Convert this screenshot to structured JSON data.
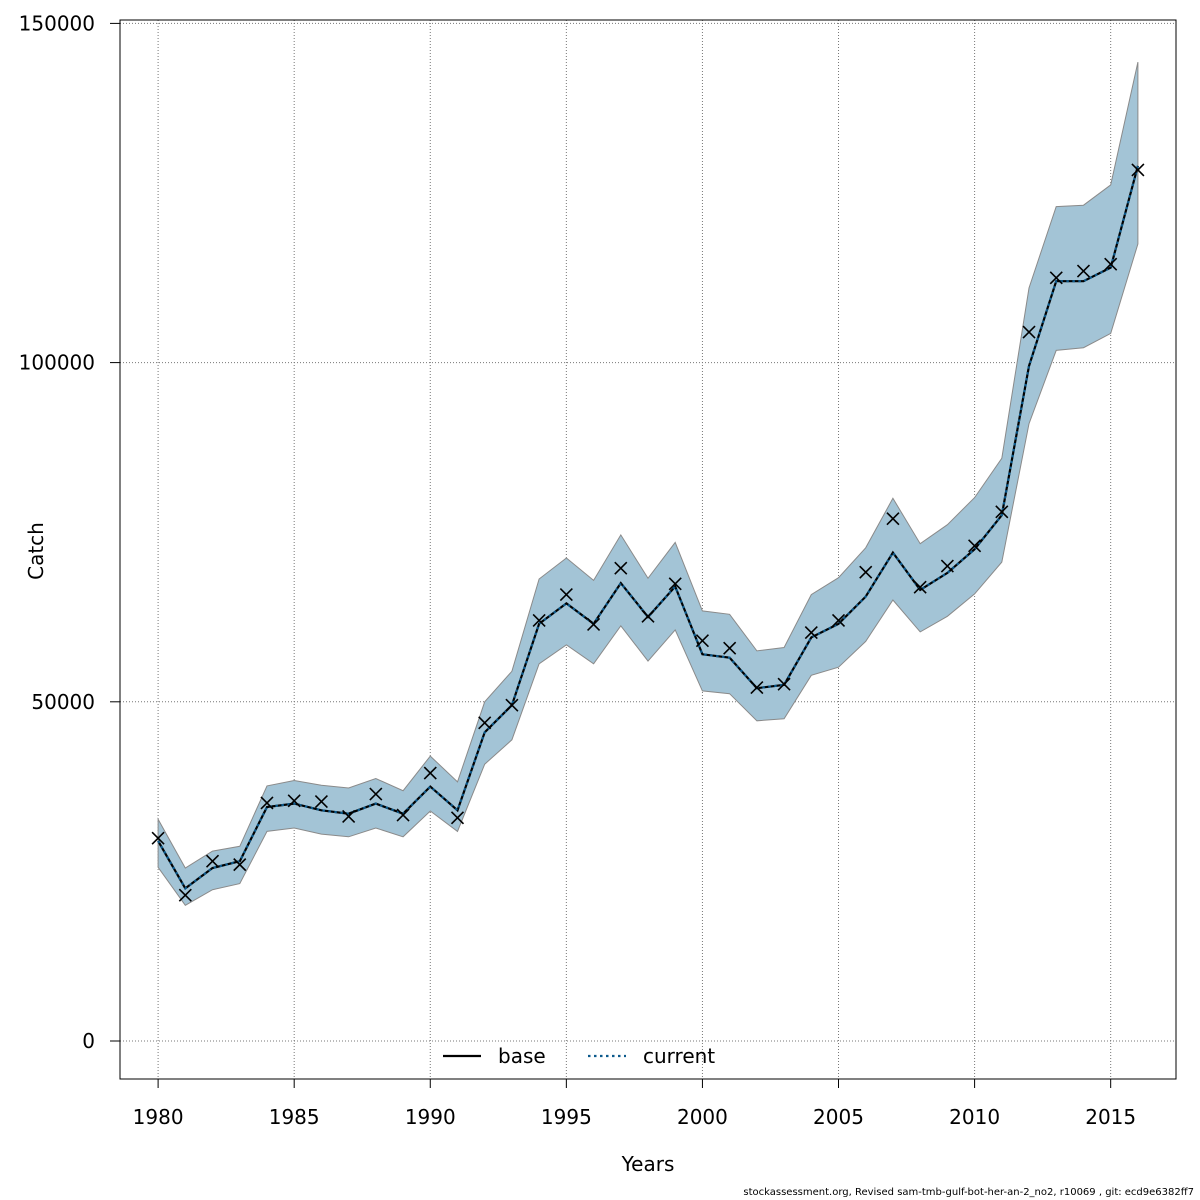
{
  "chart_data": {
    "type": "line",
    "xlabel": "Years",
    "ylabel": "Catch",
    "xlim": [
      1978.6,
      2017.4
    ],
    "ylim": [
      -5600,
      150500
    ],
    "x_ticks": [
      1980,
      1985,
      1990,
      1995,
      2000,
      2005,
      2010,
      2015
    ],
    "y_ticks": [
      0,
      50000,
      100000,
      150000
    ],
    "grid": true,
    "legend_position": "bottom-center",
    "x": [
      1980,
      1981,
      1982,
      1983,
      1984,
      1985,
      1986,
      1987,
      1988,
      1989,
      1990,
      1991,
      1992,
      1993,
      1994,
      1995,
      1996,
      1997,
      1998,
      1999,
      2000,
      2001,
      2002,
      2003,
      2004,
      2005,
      2006,
      2007,
      2008,
      2009,
      2010,
      2011,
      2012,
      2013,
      2014,
      2015,
      2016
    ],
    "series": [
      {
        "name": "base",
        "style": "solid",
        "color": "#000000",
        "values": [
          29500,
          22500,
          25500,
          26500,
          34500,
          35000,
          34000,
          33500,
          35000,
          33500,
          37500,
          34000,
          45500,
          49500,
          61500,
          64500,
          61500,
          67500,
          62500,
          67000,
          57000,
          56500,
          52000,
          52500,
          59500,
          61500,
          65500,
          72000,
          66500,
          69000,
          72500,
          77500,
          99500,
          112000,
          112000,
          114000,
          129000
        ]
      },
      {
        "name": "current",
        "style": "dotted",
        "color": "#0c5a8c",
        "values": [
          29500,
          22500,
          25500,
          26500,
          34500,
          35000,
          34000,
          33500,
          35000,
          33500,
          37500,
          34000,
          45500,
          49500,
          61500,
          64500,
          61500,
          67500,
          62500,
          67000,
          57000,
          56500,
          52000,
          52500,
          59500,
          61500,
          65500,
          72000,
          66500,
          69000,
          72500,
          77500,
          99500,
          112000,
          112000,
          114000,
          129000
        ]
      }
    ],
    "observed": {
      "marker": "x",
      "color": "#000000",
      "values": [
        29900,
        21500,
        26500,
        26000,
        35100,
        35400,
        35300,
        33100,
        36400,
        33300,
        39500,
        32900,
        46900,
        49500,
        62000,
        65800,
        61400,
        69700,
        62600,
        67400,
        59000,
        57900,
        52100,
        52600,
        60200,
        62000,
        69100,
        77000,
        66900,
        70000,
        73000,
        78000,
        104500,
        112500,
        113500,
        114500,
        128400
      ]
    },
    "confidence_band": {
      "color": "#a3c4d6",
      "lower": [
        25600,
        20000,
        22300,
        23200,
        30900,
        31400,
        30500,
        30100,
        31400,
        30100,
        33900,
        30900,
        40800,
        44400,
        55600,
        58400,
        55600,
        61200,
        56000,
        60600,
        51600,
        51200,
        47200,
        47500,
        53900,
        55100,
        58900,
        65000,
        60300,
        62600,
        65900,
        70600,
        91000,
        101800,
        102200,
        104300,
        117500
      ],
      "upper": [
        32700,
        25500,
        28000,
        28700,
        37600,
        38400,
        37700,
        37300,
        38700,
        36900,
        42000,
        38200,
        50000,
        54500,
        68100,
        71200,
        67900,
        74600,
        68200,
        73500,
        63400,
        62900,
        57500,
        58000,
        65800,
        68300,
        72700,
        80000,
        73300,
        76100,
        80100,
        85900,
        111000,
        123000,
        123200,
        126200,
        144300
      ]
    }
  },
  "legend": {
    "base": "base",
    "current": "current"
  },
  "footer": "stockassessment.org, Revised  sam-tmb-gulf-bot-her-an-2_no2, r10069 , git: ecd9e6382ff7"
}
